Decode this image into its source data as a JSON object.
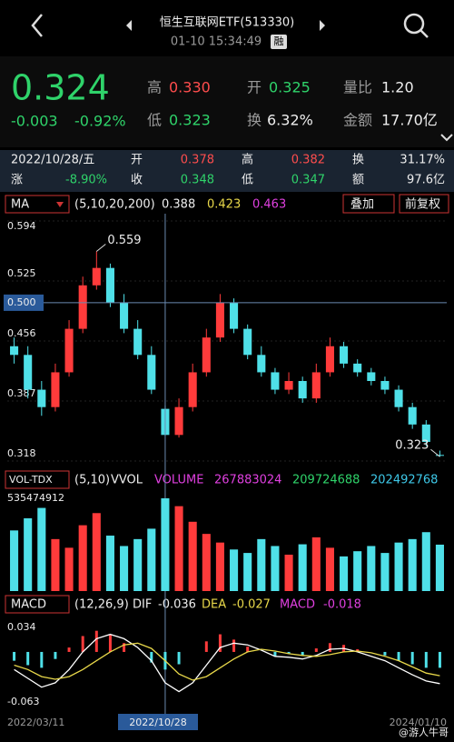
{
  "header": {
    "title": "恒生互联网ETF(513330)",
    "time": "01-10 15:34:49",
    "badge": "融"
  },
  "quote": {
    "price": "0.324",
    "change": "-0.003",
    "change_pct": "-0.92%",
    "high_label": "高",
    "high": "0.330",
    "open_label": "开",
    "open": "0.325",
    "vol_ratio_label": "量比",
    "vol_ratio": "1.20",
    "low_label": "低",
    "low": "0.323",
    "turnover_label": "换",
    "turnover": "6.32%",
    "amount_label": "金额",
    "amount": "17.70亿"
  },
  "info": {
    "date": "2022/10/28/五",
    "open_label": "开",
    "open": "0.378",
    "high_label": "高",
    "high": "0.382",
    "turnover_label": "换",
    "turnover": "31.17%",
    "change_label": "涨",
    "change": "-8.90%",
    "close_label": "收",
    "close": "0.348",
    "low_label": "低",
    "low": "0.347",
    "amount_label": "额",
    "amount": "97.6亿"
  },
  "price_panel": {
    "indicator": "MA",
    "params": "(5,10,20,200)",
    "ma_values": [
      "0.388",
      "0.423",
      "0.463"
    ],
    "buttons": [
      "叠加",
      "前复权"
    ]
  },
  "vol_panel": {
    "indicator": "VOL-TDX",
    "params": "(5,10)",
    "label": "VVOL",
    "volume_label": "VOLUME",
    "values": [
      "267883024",
      "209724688",
      "202492768"
    ]
  },
  "macd_panel": {
    "indicator": "MACD",
    "params": "(12,26,9)",
    "dif_label": "DIF",
    "dif": "-0.036",
    "dea_label": "DEA",
    "dea": "-0.027",
    "macd_label": "MACD",
    "macd": "-0.018"
  },
  "date_labels": [
    "2022/03/11",
    "2022/10/28",
    "2024/01/10"
  ],
  "watermark": "@游人牛哥",
  "chart_data": [
    {
      "type": "candlestick",
      "ylim": [
        0.318,
        0.594
      ],
      "yticks": [
        0.594,
        0.525,
        0.456,
        0.387,
        0.318
      ],
      "crosshair_y": {
        "value": 0.5,
        "label": "0.500"
      },
      "crosshair_index": 11,
      "annotations": [
        {
          "text": "0.559",
          "value": 0.559,
          "index": 6
        },
        {
          "text": "0.323",
          "value": 0.323,
          "index": 31
        }
      ],
      "colors": {
        "up": "#ff3b3b",
        "down": "#4fe0e8"
      },
      "open": [
        0.45,
        0.44,
        0.4,
        0.38,
        0.42,
        0.47,
        0.52,
        0.54,
        0.5,
        0.47,
        0.44,
        0.378,
        0.348,
        0.38,
        0.42,
        0.46,
        0.5,
        0.47,
        0.44,
        0.42,
        0.4,
        0.41,
        0.39,
        0.42,
        0.45,
        0.43,
        0.42,
        0.41,
        0.4,
        0.38,
        0.36,
        0.325
      ],
      "high": [
        0.46,
        0.45,
        0.41,
        0.43,
        0.48,
        0.53,
        0.559,
        0.545,
        0.51,
        0.48,
        0.45,
        0.382,
        0.39,
        0.43,
        0.47,
        0.51,
        0.505,
        0.475,
        0.45,
        0.425,
        0.42,
        0.415,
        0.43,
        0.46,
        0.455,
        0.435,
        0.425,
        0.415,
        0.405,
        0.385,
        0.365,
        0.33
      ],
      "low": [
        0.43,
        0.39,
        0.37,
        0.375,
        0.415,
        0.465,
        0.515,
        0.495,
        0.465,
        0.435,
        0.395,
        0.347,
        0.345,
        0.375,
        0.415,
        0.455,
        0.465,
        0.435,
        0.415,
        0.395,
        0.395,
        0.385,
        0.385,
        0.415,
        0.425,
        0.415,
        0.405,
        0.395,
        0.375,
        0.355,
        0.335,
        0.323
      ],
      "close": [
        0.44,
        0.4,
        0.38,
        0.42,
        0.47,
        0.52,
        0.54,
        0.5,
        0.47,
        0.44,
        0.4,
        0.348,
        0.38,
        0.42,
        0.46,
        0.5,
        0.47,
        0.44,
        0.42,
        0.4,
        0.41,
        0.39,
        0.42,
        0.45,
        0.43,
        0.42,
        0.41,
        0.4,
        0.38,
        0.36,
        0.34,
        0.324
      ]
    },
    {
      "type": "bar",
      "ylim": [
        0,
        535474912
      ],
      "yticks": [
        535474912
      ],
      "colors": {
        "up": "#ff3b3b",
        "down": "#4fe0e8"
      },
      "values": [
        350000000,
        420000000,
        480000000,
        300000000,
        250000000,
        380000000,
        450000000,
        320000000,
        260000000,
        300000000,
        360000000,
        535474912,
        490000000,
        400000000,
        330000000,
        280000000,
        240000000,
        220000000,
        300000000,
        260000000,
        210000000,
        270000000,
        310000000,
        250000000,
        200000000,
        230000000,
        260000000,
        220000000,
        280000000,
        300000000,
        340000000,
        267883024
      ]
    },
    {
      "type": "macd",
      "ylim": [
        -0.063,
        0.034
      ],
      "yticks": [
        0.034,
        -0.063
      ],
      "colors": {
        "up": "#ff3b3b",
        "down": "#4fe0e8",
        "dif": "#ffffff",
        "dea": "#e8d84a"
      },
      "histogram": [
        -0.01,
        -0.015,
        -0.018,
        -0.008,
        0.005,
        0.018,
        0.024,
        0.02,
        0.01,
        0.0,
        -0.012,
        -0.02,
        -0.014,
        0.0,
        0.012,
        0.02,
        0.014,
        0.006,
        0.0,
        -0.005,
        -0.002,
        -0.004,
        0.004,
        0.01,
        0.008,
        0.003,
        0.0,
        -0.004,
        -0.01,
        -0.014,
        -0.018,
        -0.018
      ],
      "dif": [
        -0.02,
        -0.03,
        -0.04,
        -0.035,
        -0.02,
        0.0,
        0.015,
        0.02,
        0.015,
        0.005,
        -0.01,
        -0.035,
        -0.045,
        -0.035,
        -0.015,
        0.005,
        0.01,
        0.008,
        0.002,
        -0.005,
        -0.006,
        -0.008,
        -0.004,
        0.003,
        0.004,
        0.0,
        -0.005,
        -0.01,
        -0.018,
        -0.026,
        -0.033,
        -0.036
      ],
      "dea": [
        -0.015,
        -0.02,
        -0.028,
        -0.031,
        -0.028,
        -0.02,
        -0.01,
        0.0,
        0.008,
        0.01,
        0.004,
        -0.01,
        -0.025,
        -0.032,
        -0.028,
        -0.018,
        -0.008,
        0.0,
        0.003,
        0.001,
        -0.002,
        -0.004,
        -0.005,
        -0.003,
        0.0,
        0.001,
        -0.001,
        -0.005,
        -0.01,
        -0.017,
        -0.024,
        -0.027
      ]
    }
  ]
}
